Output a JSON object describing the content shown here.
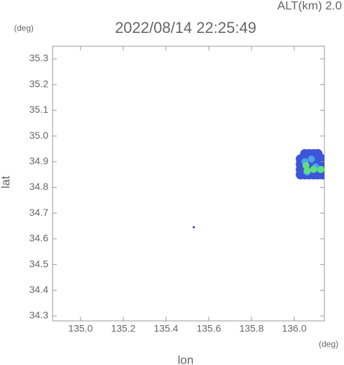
{
  "chart_data": {
    "type": "scatter",
    "title": "2022/08/14 22:25:49",
    "subtitle": "ALT(km) 2.0",
    "y_unit": "(deg)",
    "x_unit": "(deg)",
    "x_label": "lon",
    "y_label": "lat",
    "xlim": [
      134.869,
      136.141
    ],
    "ylim": [
      34.281,
      35.349
    ],
    "xticks": [
      {
        "value": 135.0,
        "label": "135.0"
      },
      135.2,
      135.4,
      135.6,
      135.8,
      {
        "value": 136.0,
        "label": "136.0"
      }
    ],
    "yticks": [
      34.3,
      34.4,
      34.5,
      34.6,
      34.7,
      34.8,
      34.9,
      {
        "value": 35.0,
        "label": "35.0"
      },
      35.1,
      35.2,
      35.3
    ],
    "series": [
      {
        "color": "#3d55d8",
        "x": [
          136.03,
          136.05,
          136.07,
          136.09,
          136.11,
          136.13,
          136.03,
          136.05,
          136.07,
          136.09,
          136.11,
          136.13,
          136.03,
          136.05,
          136.07,
          136.09,
          136.11,
          136.13,
          136.03,
          136.05,
          136.07,
          136.09,
          136.11,
          136.13,
          136.05,
          136.07,
          136.09,
          136.11
        ],
        "values": [
          34.85,
          34.85,
          34.85,
          34.85,
          34.85,
          34.85,
          34.87,
          34.87,
          34.87,
          34.87,
          34.87,
          34.87,
          34.89,
          34.89,
          34.89,
          34.89,
          34.89,
          34.89,
          34.91,
          34.91,
          34.91,
          34.91,
          34.91,
          34.91,
          34.93,
          34.93,
          34.93,
          34.93
        ]
      },
      {
        "color": "#4aa6e6",
        "x": [
          136.05,
          136.06,
          136.08,
          136.12,
          136.1
        ],
        "values": [
          34.9,
          34.86,
          34.91,
          34.87,
          34.88
        ]
      },
      {
        "color": "#5fe07e",
        "x": [
          136.055,
          136.06,
          136.09,
          136.125
        ],
        "values": [
          34.885,
          34.865,
          34.87,
          34.87
        ]
      },
      {
        "color": "#2233cc",
        "x": [
          135.53
        ],
        "values": [
          34.645
        ]
      }
    ]
  }
}
